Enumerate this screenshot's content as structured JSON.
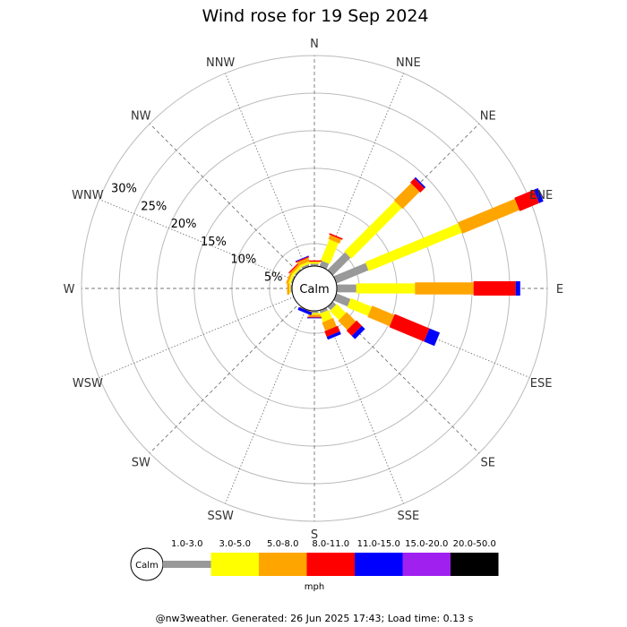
{
  "title": "Wind rose for 19 Sep 2024",
  "calm_label": "Calm",
  "footer": "@nw3weather. Generated: 26 Jun 2025 17:43; Load time: 0.13 s",
  "chart_data": {
    "type": "wind-rose",
    "title": "Wind rose for 19 Sep 2024",
    "directions": [
      "N",
      "NNE",
      "NE",
      "ENE",
      "E",
      "ESE",
      "SE",
      "SSE",
      "S",
      "SSW",
      "SW",
      "WSW",
      "W",
      "WNW",
      "NW",
      "NNW"
    ],
    "radial_ticks": [
      "5%",
      "10%",
      "15%",
      "20%",
      "25%",
      "30%"
    ],
    "radial_tick_values": [
      5,
      10,
      15,
      20,
      25,
      30
    ],
    "radial_max": 30,
    "calm_radius_pct": 2,
    "speed_bins": [
      {
        "label": "1.0-3.0",
        "color": "#999999"
      },
      {
        "label": "3.0-5.0",
        "color": "#ffff00"
      },
      {
        "label": "5.0-8.0",
        "color": "#ffa500"
      },
      {
        "label": "8.0-11.0",
        "color": "#ff0000"
      },
      {
        "label": "11.0-15.0",
        "color": "#0000ff"
      },
      {
        "label": "15.0-20.0",
        "color": "#a020f0"
      },
      {
        "label": "20.0-50.0",
        "color": "#000000"
      }
    ],
    "unit": "mph",
    "series": [
      {
        "direction": "N",
        "values": [
          0.3,
          0.2,
          0.1,
          0.15,
          0,
          0,
          0
        ]
      },
      {
        "direction": "NNE",
        "values": [
          0.8,
          3.0,
          0.6,
          0.2,
          0,
          0,
          0
        ]
      },
      {
        "direction": "NE",
        "values": [
          3.3,
          9.5,
          3.2,
          0.8,
          0.2,
          0,
          0
        ]
      },
      {
        "direction": "ENE",
        "values": [
          4.6,
          13.4,
          8.2,
          2.8,
          0.6,
          0,
          0
        ]
      },
      {
        "direction": "E",
        "values": [
          2.6,
          7.8,
          7.8,
          5.6,
          0.6,
          0,
          0
        ]
      },
      {
        "direction": "ESE",
        "values": [
          2.0,
          3.0,
          3.2,
          5.0,
          1.5,
          0,
          0
        ]
      },
      {
        "direction": "SE",
        "values": [
          0.6,
          1.7,
          1.7,
          1.0,
          0.6,
          0,
          0
        ]
      },
      {
        "direction": "SSE",
        "values": [
          0.4,
          1.2,
          1.2,
          0.8,
          0.4,
          0,
          0
        ]
      },
      {
        "direction": "S",
        "values": [
          0.3,
          0.2,
          0.3,
          0.1,
          0.1,
          0,
          0
        ]
      },
      {
        "direction": "SSW",
        "values": [
          0,
          0,
          0.1,
          0,
          0.4,
          0,
          0
        ]
      },
      {
        "direction": "SW",
        "values": [
          0,
          0,
          0,
          0,
          0,
          0,
          0
        ]
      },
      {
        "direction": "WSW",
        "values": [
          0,
          0,
          0,
          0,
          0,
          0,
          0
        ]
      },
      {
        "direction": "W",
        "values": [
          0.2,
          0.15,
          0.3,
          0,
          0,
          0,
          0
        ]
      },
      {
        "direction": "WNW",
        "values": [
          0.2,
          0.3,
          0.3,
          0,
          0,
          0,
          0
        ]
      },
      {
        "direction": "NW",
        "values": [
          0.2,
          0.3,
          0.3,
          0.15,
          0,
          0,
          0
        ]
      },
      {
        "direction": "NNW",
        "values": [
          0.3,
          0.3,
          0.5,
          0.15,
          0.1,
          0,
          0
        ]
      }
    ]
  }
}
